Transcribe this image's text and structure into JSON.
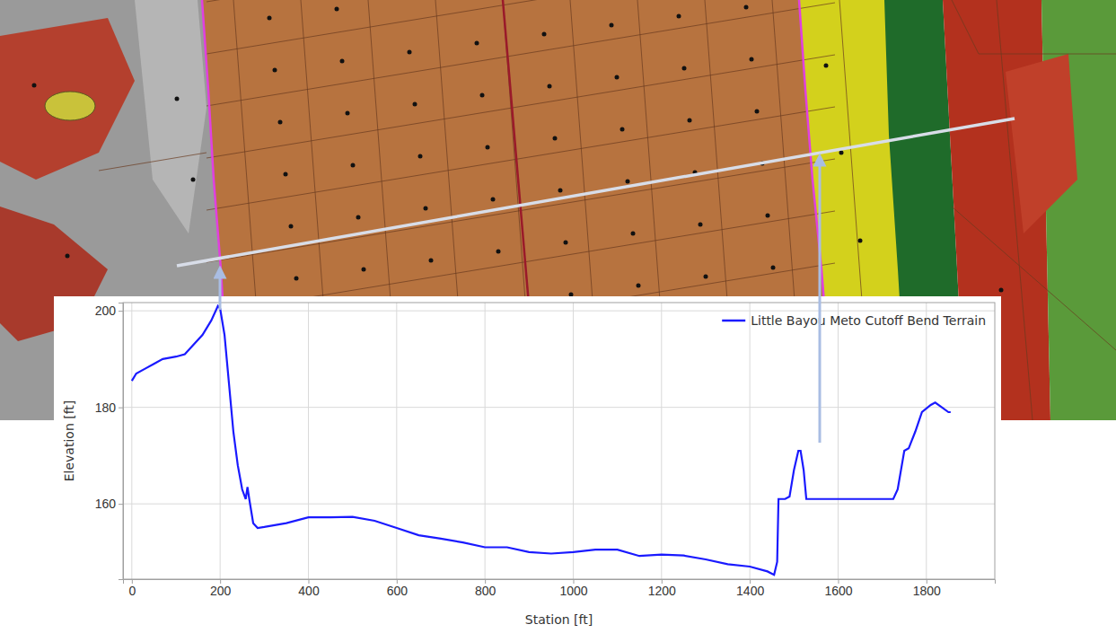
{
  "chart_data": {
    "type": "line",
    "x_label": "Station [ft]",
    "y_label": "Elevation [ft]",
    "x": [
      0,
      10,
      30,
      50,
      70,
      100,
      120,
      140,
      160,
      180,
      195,
      200,
      210,
      220,
      230,
      240,
      250,
      258,
      262,
      266,
      275,
      285,
      300,
      350,
      400,
      450,
      500,
      550,
      600,
      650,
      700,
      750,
      800,
      850,
      900,
      950,
      1000,
      1050,
      1100,
      1150,
      1200,
      1250,
      1300,
      1350,
      1400,
      1440,
      1455,
      1462,
      1465,
      1480,
      1490,
      1500,
      1510,
      1515,
      1522,
      1528,
      1550,
      1700,
      1725,
      1735,
      1750,
      1760,
      1775,
      1790,
      1810,
      1820,
      1835,
      1850,
      1855
    ],
    "series": [
      {
        "name": "Little Bayou Meto Cutoff Bend Terrain",
        "color": "#1a1aff",
        "values": [
          185.5,
          187,
          188,
          189,
          190,
          190.5,
          191,
          193,
          195,
          198,
          201,
          200.5,
          195,
          185,
          175,
          168,
          163,
          161,
          163.5,
          161,
          156,
          155,
          155.2,
          156,
          157.2,
          157.2,
          157.3,
          156.5,
          155,
          153.5,
          152.8,
          152,
          151,
          151,
          150,
          149.7,
          150,
          150.5,
          150.5,
          149.2,
          149.5,
          149.3,
          148.5,
          147.5,
          147,
          146,
          145.3,
          148,
          161,
          161,
          161.5,
          167,
          171,
          171,
          167,
          161,
          161,
          161,
          161,
          163,
          171,
          171.5,
          175,
          179,
          180.5,
          181,
          180,
          179,
          179
        ]
      }
    ],
    "xlim": [
      -20,
      1955
    ],
    "ylim": [
      144.4,
      201.7
    ],
    "xticks": [
      0,
      200,
      400,
      600,
      800,
      1000,
      1200,
      1400,
      1600,
      1800
    ],
    "yticks": [
      160,
      180,
      200
    ],
    "grid": true,
    "legend": "top-right"
  }
}
